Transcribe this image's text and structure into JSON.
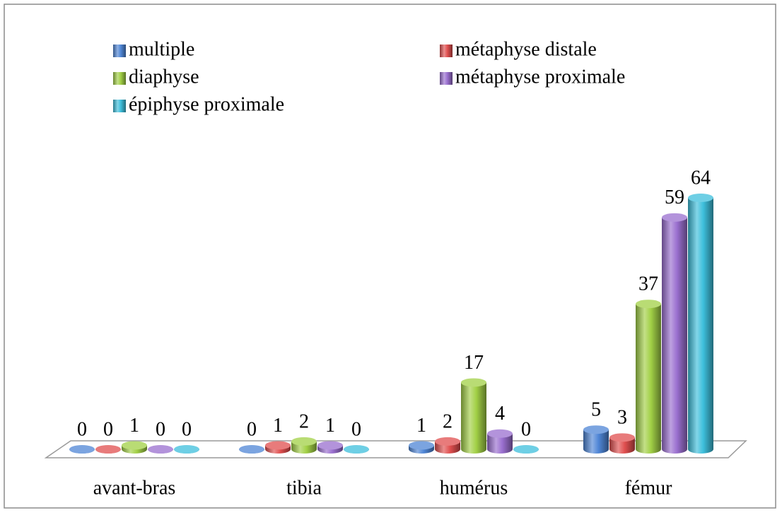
{
  "chart_data": {
    "type": "bar3d",
    "categories": [
      "avant-bras",
      "tibia",
      "humérus",
      "fémur"
    ],
    "series": [
      {
        "name": "multiple",
        "color": "#4f86d6",
        "values": [
          0,
          0,
          1,
          5
        ]
      },
      {
        "name": "métaphyse distale",
        "color": "#e04f4f",
        "values": [
          0,
          1,
          2,
          3
        ]
      },
      {
        "name": "diaphyse",
        "color": "#a2d046",
        "values": [
          1,
          2,
          17,
          37
        ]
      },
      {
        "name": "métaphyse proximale",
        "color": "#9a6fcf",
        "values": [
          0,
          1,
          4,
          59
        ]
      },
      {
        "name": "épiphyse proximale",
        "color": "#3ebfdc",
        "values": [
          0,
          0,
          0,
          64
        ]
      }
    ],
    "legend": "top"
  }
}
